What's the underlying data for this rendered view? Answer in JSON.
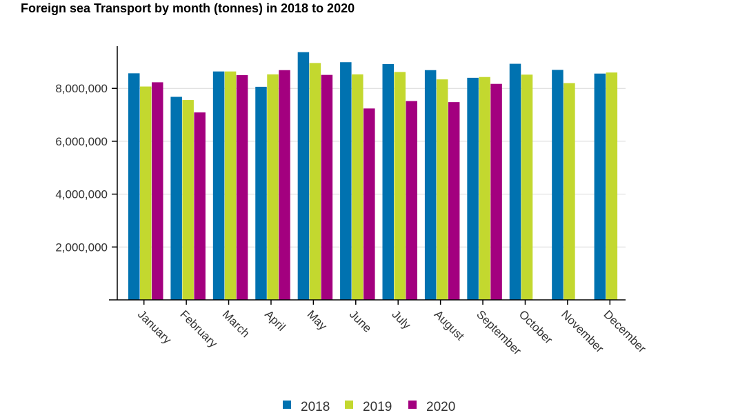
{
  "chart_data": {
    "type": "bar",
    "title": "Foreign sea Transport by month (tonnes) in 2018 to 2020",
    "xlabel": "",
    "ylabel": "",
    "ylim": [
      0,
      9600000
    ],
    "yticks": [
      2000000,
      4000000,
      6000000,
      8000000
    ],
    "ytick_labels": [
      "2,000,000",
      "4,000,000",
      "6,000,000",
      "8,000,000"
    ],
    "grid": true,
    "legend_position": "bottom",
    "categories": [
      "January",
      "February",
      "March",
      "April",
      "May",
      "June",
      "July",
      "August",
      "September",
      "October",
      "November",
      "December"
    ],
    "series": [
      {
        "name": "2018",
        "color": "#0072b0",
        "values": [
          8570000,
          7680000,
          8640000,
          8060000,
          9370000,
          8990000,
          8920000,
          8690000,
          8400000,
          8930000,
          8700000,
          8560000
        ]
      },
      {
        "name": "2019",
        "color": "#c3d82f",
        "values": [
          8070000,
          7560000,
          8640000,
          8530000,
          8960000,
          8530000,
          8620000,
          8340000,
          8430000,
          8520000,
          8200000,
          8600000
        ]
      },
      {
        "name": "2020",
        "color": "#a3007f",
        "values": [
          8230000,
          7090000,
          8500000,
          8690000,
          8510000,
          7240000,
          7520000,
          7480000,
          8170000,
          null,
          null,
          null
        ]
      }
    ]
  }
}
